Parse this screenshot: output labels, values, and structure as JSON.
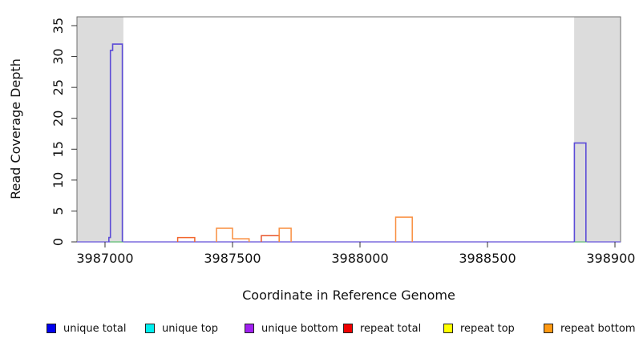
{
  "chart_data": {
    "type": "line",
    "title": "",
    "xlabel": "Coordinate in Reference Genome",
    "ylabel": "Read Coverage Depth",
    "xlim": [
      3986890,
      3989022
    ],
    "ylim": [
      0,
      36.5
    ],
    "x_ticks": [
      3987000,
      3987500,
      3988000,
      3988500,
      3989000
    ],
    "y_ticks": [
      0,
      5,
      10,
      15,
      20,
      25,
      30,
      35
    ],
    "grid": false,
    "legend_position": "bottom",
    "shaded_regions": [
      {
        "name": "left-flank-region",
        "x0": 3986890,
        "x1": 3987072,
        "color": "#dcdcdc"
      },
      {
        "name": "right-flank-region",
        "x0": 3988840,
        "x1": 3989022,
        "color": "#dcdcdc"
      }
    ],
    "series": [
      {
        "name": "unique-baseline",
        "color": "#7b6cdd",
        "width": 1.4,
        "points": [
          [
            3986890,
            0
          ],
          [
            3989022,
            0
          ]
        ]
      },
      {
        "name": "unique-top-baseline-left",
        "color": "#86d986",
        "width": 1.4,
        "points": [
          [
            3987020,
            0
          ],
          [
            3987072,
            0
          ]
        ]
      },
      {
        "name": "unique-top-baseline-right",
        "color": "#86d986",
        "width": 1.4,
        "points": [
          [
            3988840,
            0
          ],
          [
            3988890,
            0
          ]
        ]
      },
      {
        "name": "repeat-peak-1",
        "color": "#f2662d",
        "width": 1.5,
        "points": [
          [
            3987285,
            0
          ],
          [
            3987285,
            0.7
          ],
          [
            3987352,
            0.7
          ],
          [
            3987352,
            0
          ]
        ]
      },
      {
        "name": "repeat-peak-2",
        "color": "#f98e3f",
        "width": 1.5,
        "points": [
          [
            3987437,
            0
          ],
          [
            3987437,
            2.2
          ],
          [
            3987500,
            2.2
          ],
          [
            3987500,
            0.5
          ],
          [
            3987565,
            0.5
          ],
          [
            3987565,
            0
          ]
        ]
      },
      {
        "name": "repeat-peak-3-red",
        "color": "#e8542a",
        "width": 1.5,
        "points": [
          [
            3987613,
            0
          ],
          [
            3987613,
            1.0
          ],
          [
            3987683,
            1.0
          ],
          [
            3987683,
            0
          ]
        ]
      },
      {
        "name": "repeat-peak-3-orange",
        "color": "#f98e3f",
        "width": 1.5,
        "points": [
          [
            3987683,
            0
          ],
          [
            3987683,
            2.2
          ],
          [
            3987730,
            2.2
          ],
          [
            3987730,
            0
          ]
        ]
      },
      {
        "name": "repeat-peak-4",
        "color": "#f98e3f",
        "width": 1.5,
        "points": [
          [
            3988140,
            0
          ],
          [
            3988140,
            4.0
          ],
          [
            3988205,
            4.0
          ],
          [
            3988205,
            0
          ]
        ]
      },
      {
        "name": "unique-peak-left",
        "color": "#5b4bd7",
        "width": 1.6,
        "points": [
          [
            3987015,
            0
          ],
          [
            3987015,
            0.7
          ],
          [
            3987021,
            0.7
          ],
          [
            3987021,
            31
          ],
          [
            3987030,
            31
          ],
          [
            3987030,
            32
          ],
          [
            3987068,
            32
          ],
          [
            3987068,
            0
          ]
        ]
      },
      {
        "name": "unique-peak-right",
        "color": "#5b4bd7",
        "width": 1.6,
        "points": [
          [
            3988841,
            0
          ],
          [
            3988841,
            16
          ],
          [
            3988886,
            16
          ],
          [
            3988886,
            0
          ]
        ]
      }
    ],
    "legend": [
      {
        "label": "unique total",
        "color": "#0000ee"
      },
      {
        "label": "unique top",
        "color": "#00eeee"
      },
      {
        "label": "unique bottom",
        "color": "#a020f0"
      },
      {
        "label": "repeat total",
        "color": "#ee0000"
      },
      {
        "label": "repeat top",
        "color": "#ffff00"
      },
      {
        "label": "repeat bottom",
        "color": "#ff9912"
      }
    ]
  }
}
